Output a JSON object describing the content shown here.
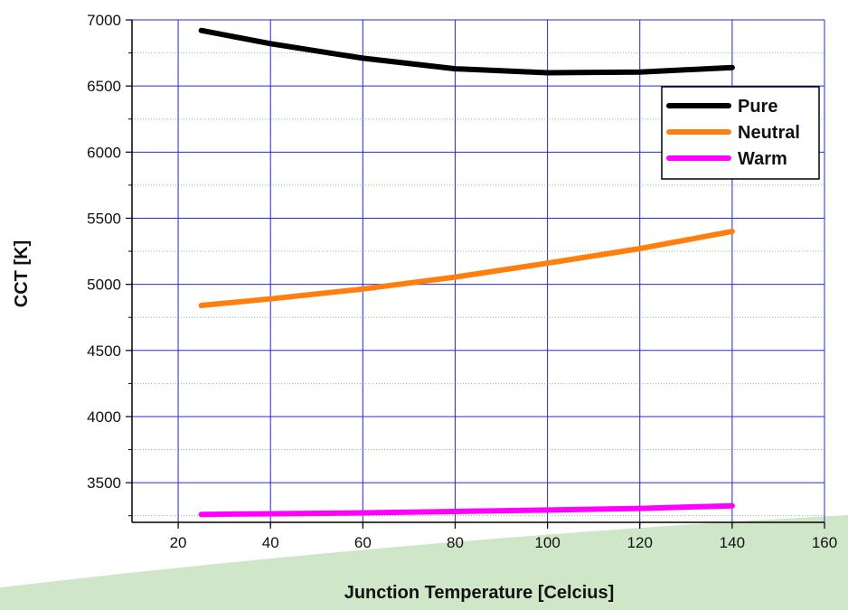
{
  "colors": {
    "major_grid": "#2a2ad6",
    "minor_grid": "#7ccc7c",
    "background_band": "#cfe6c9",
    "axis": "#000000"
  },
  "chart_data": {
    "type": "line",
    "title": "",
    "xlabel": "Junction Temperature [Celcius]",
    "ylabel": "CCT [K]",
    "xlim": [
      10,
      160
    ],
    "ylim": [
      3200,
      7000
    ],
    "x_ticks": [
      20,
      40,
      60,
      80,
      100,
      120,
      140,
      160
    ],
    "y_ticks": [
      3500,
      4000,
      4500,
      5000,
      5500,
      6000,
      6500,
      7000
    ],
    "grid": true,
    "legend_position": "top-right",
    "series": [
      {
        "name": "Pure",
        "color": "#000000",
        "x": [
          25,
          40,
          60,
          80,
          100,
          120,
          140
        ],
        "values": [
          6920,
          6820,
          6710,
          6630,
          6600,
          6605,
          6640
        ]
      },
      {
        "name": "Neutral",
        "color": "#ff7f0e",
        "x": [
          25,
          40,
          60,
          80,
          100,
          120,
          140
        ],
        "values": [
          4840,
          4890,
          4965,
          5055,
          5160,
          5270,
          5400
        ]
      },
      {
        "name": "Warm",
        "color": "#ff00ff",
        "x": [
          25,
          40,
          60,
          80,
          100,
          120,
          140
        ],
        "values": [
          3260,
          3265,
          3272,
          3282,
          3293,
          3305,
          3325
        ]
      }
    ]
  }
}
